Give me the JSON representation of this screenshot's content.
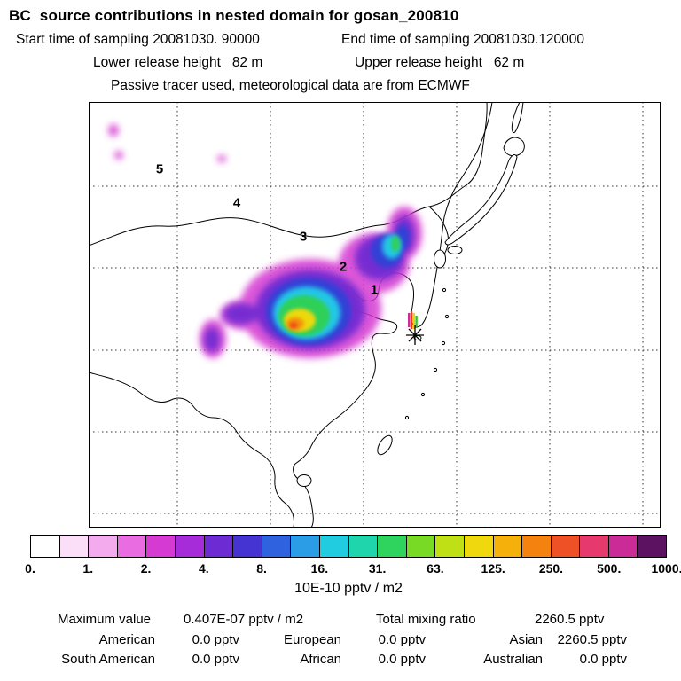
{
  "header": {
    "title": "BC  source contributions in nested domain for gosan_200810",
    "start_time": "Start time of sampling 20081030. 90000",
    "end_time": "End time of sampling 20081030.120000",
    "lower_release": "Lower release height   82 m",
    "upper_release": "Upper release height   62 m",
    "tracer_line": "Passive tracer used, meteorological data are from ECMWF"
  },
  "map": {
    "domain_labels": [
      "1",
      "2",
      "3",
      "4",
      "5"
    ],
    "receptor_marker": "asterisk at Gosan"
  },
  "colorbar": {
    "label": "10E-10 pptv / m2",
    "ticks": [
      "0.",
      "1.",
      "2.",
      "4.",
      "8.",
      "16.",
      "31.",
      "63.",
      "125.",
      "250.",
      "500.",
      "1000."
    ],
    "colors": [
      "#ffffff",
      "#fbdef8",
      "#f3abee",
      "#e96ce0",
      "#d53bd2",
      "#a52cd8",
      "#6d2bd3",
      "#4634d2",
      "#2f62de",
      "#2b9ce6",
      "#22cce0",
      "#1fd6ac",
      "#2ed45e",
      "#79da25",
      "#c0e016",
      "#f0d80e",
      "#f6b00c",
      "#f3830e",
      "#ee5126",
      "#e63a6e",
      "#cb2b96",
      "#5c1260"
    ]
  },
  "stats": {
    "maximum_label": "Maximum value",
    "maximum_value": "0.407E-07 pptv / m2",
    "total_label": "Total mixing ratio",
    "total_value": "2260.5 pptv",
    "contributions": [
      {
        "name": "American",
        "value": "0.0 pptv"
      },
      {
        "name": "European",
        "value": "0.0 pptv"
      },
      {
        "name": "Asian",
        "value": "2260.5 pptv"
      },
      {
        "name": "South American",
        "value": "0.0 pptv"
      },
      {
        "name": "African",
        "value": "0.0 pptv"
      },
      {
        "name": "Australian",
        "value": "0.0 pptv"
      }
    ]
  },
  "chart_data": {
    "type": "heatmap",
    "title": "BC source contributions in nested domain for gosan_200810",
    "subtitle": "Passive tracer used, meteorological data are from ECMWF",
    "start_time": "20081030. 90000",
    "end_time": "20081030.120000",
    "lower_release_height_m": 82,
    "upper_release_height_m": 62,
    "units": "10E-10 pptv / m2",
    "color_scale_levels": [
      0,
      1,
      2,
      4,
      8,
      16,
      31,
      63,
      125,
      250,
      500,
      1000
    ],
    "legend_position": "bottom",
    "grid": "dashed lat/lon graticule",
    "nested_domain_labels": [
      1,
      2,
      3,
      4,
      5
    ],
    "maximum_value": "0.407E-07 pptv / m2",
    "total_mixing_ratio_pptv": 2260.5,
    "contributions_pptv": {
      "American": 0.0,
      "European": 0.0,
      "Asian": 2260.5,
      "South American": 0.0,
      "African": 0.0,
      "Australian": 0.0
    },
    "plume_description": "Source-contribution plume over eastern China with orange/yellow core (>63) ringed by green, cyan, blue and purple/magenta (1-8), an arm extending northeast over Manchuria, weaker purple patches to the west, and a small multicolor streak at the Gosan receptor marked by an asterisk south of Korea"
  }
}
